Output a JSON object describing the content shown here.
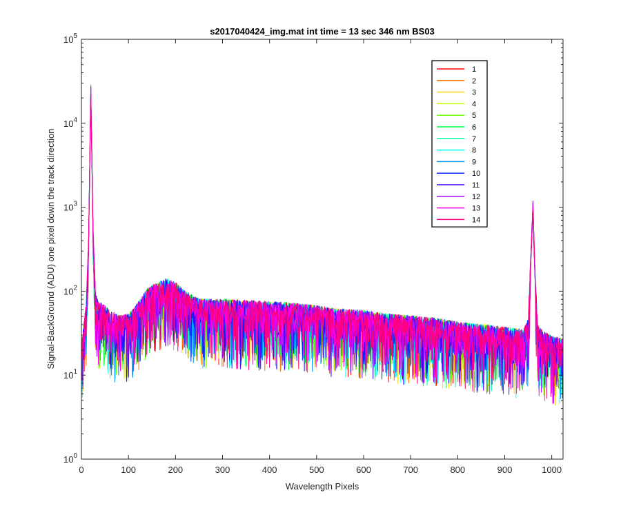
{
  "chart_data": {
    "type": "line",
    "title": "s2017040424_img.mat int time = 13 sec  346 nm BS03",
    "xlabel": "Wavelength Pixels",
    "ylabel": "Signal-BackGround (ADU) one pixel down the track direction",
    "xlim": [
      0,
      1024
    ],
    "ylim": [
      1,
      100000
    ],
    "yscale": "log",
    "x_ticks": [
      0,
      100,
      200,
      300,
      400,
      500,
      600,
      700,
      800,
      900,
      1000
    ],
    "y_ticks": [
      {
        "value": 1,
        "base": "10",
        "exp": "0"
      },
      {
        "value": 10,
        "base": "10",
        "exp": "1"
      },
      {
        "value": 100,
        "base": "10",
        "exp": "2"
      },
      {
        "value": 1000,
        "base": "10",
        "exp": "3"
      },
      {
        "value": 10000,
        "base": "10",
        "exp": "4"
      },
      {
        "value": 100000,
        "base": "10",
        "exp": "5"
      }
    ],
    "grid": false,
    "legend_position": "top-right",
    "series": [
      {
        "name": "1",
        "color": "#ff0000"
      },
      {
        "name": "2",
        "color": "#ff7300"
      },
      {
        "name": "3",
        "color": "#ffd400"
      },
      {
        "name": "4",
        "color": "#c8ff00"
      },
      {
        "name": "5",
        "color": "#6eff00"
      },
      {
        "name": "6",
        "color": "#00ff36"
      },
      {
        "name": "7",
        "color": "#00ffa0"
      },
      {
        "name": "8",
        "color": "#00ffff"
      },
      {
        "name": "9",
        "color": "#0096ff"
      },
      {
        "name": "10",
        "color": "#0028ff"
      },
      {
        "name": "11",
        "color": "#3c00ff"
      },
      {
        "name": "12",
        "color": "#a000ff"
      },
      {
        "name": "13",
        "color": "#ff00e6"
      },
      {
        "name": "14",
        "color": "#ff0080"
      }
    ],
    "shared_profile": {
      "x": [
        0,
        5,
        10,
        15,
        20,
        25,
        30,
        40,
        60,
        80,
        100,
        120,
        140,
        160,
        180,
        200,
        220,
        250,
        300,
        350,
        400,
        450,
        500,
        550,
        600,
        650,
        700,
        750,
        800,
        850,
        900,
        940,
        950,
        955,
        960,
        965,
        970,
        980,
        1000,
        1024
      ],
      "y": [
        18,
        30,
        55,
        300,
        25000,
        400,
        70,
        55,
        45,
        38,
        40,
        55,
        80,
        95,
        105,
        95,
        75,
        60,
        60,
        58,
        56,
        54,
        50,
        46,
        44,
        40,
        38,
        36,
        32,
        30,
        28,
        26,
        35,
        200,
        1000,
        120,
        30,
        25,
        22,
        20
      ]
    }
  }
}
